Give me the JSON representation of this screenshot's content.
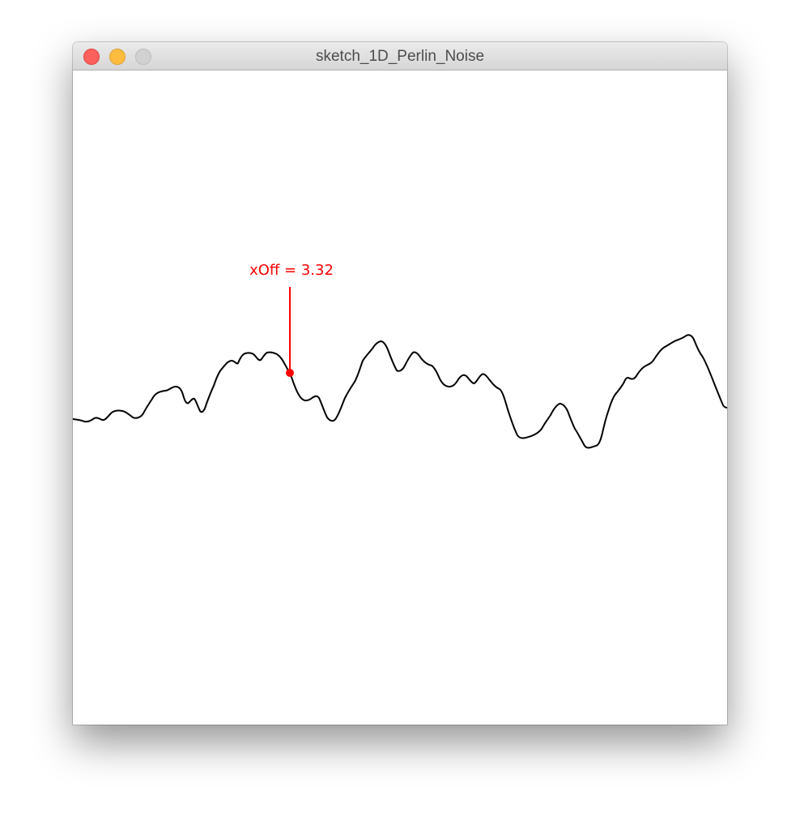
{
  "window": {
    "title": "sketch_1D_Perlin_Noise"
  },
  "window_controls": {
    "close": {
      "icon": "close-dot-icon",
      "color": "#fc605c"
    },
    "minimize": {
      "icon": "minimize-dot-icon",
      "color": "#fdbc40"
    },
    "zoom": {
      "icon": "zoom-dot-icon",
      "color": "#d1d1d1"
    }
  },
  "sketch": {
    "marker_label": "xOff = 3.32",
    "marker_color": "#ff0000",
    "curve_color": "#000000",
    "background": "#ffffff"
  }
}
